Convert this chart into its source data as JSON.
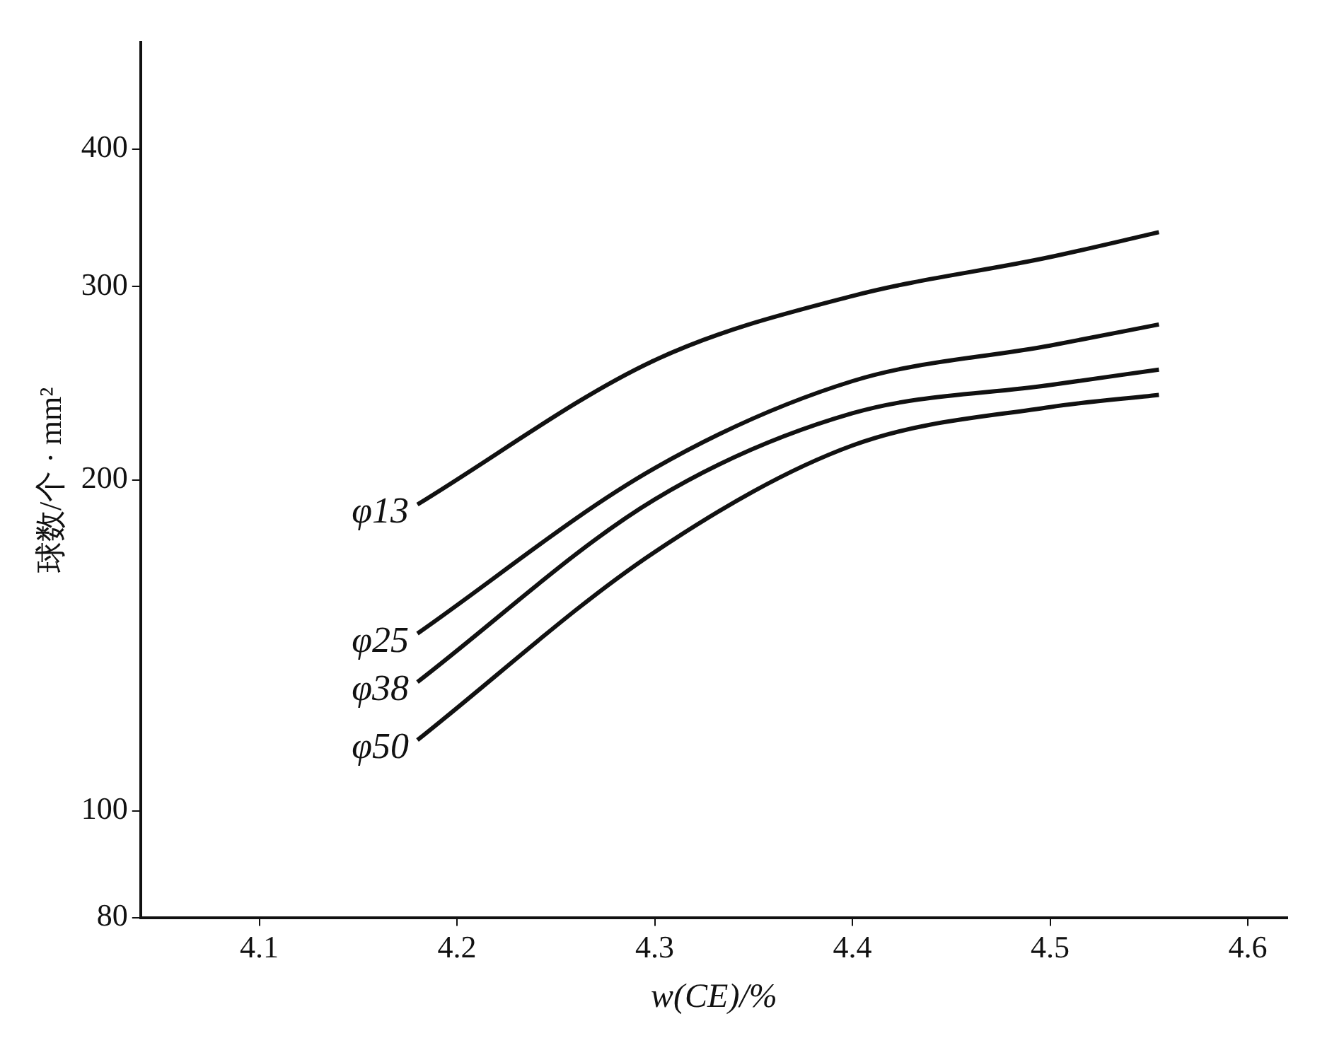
{
  "chart_data": {
    "type": "line",
    "xlabel": "w(CE)/%",
    "ylabel": "球数/个 · mm²",
    "log": "y",
    "grid": false,
    "legend": false,
    "marker": "none",
    "line_style": "solid",
    "x": [
      4.18,
      4.3,
      4.4,
      4.5,
      4.555
    ],
    "xlim": [
      4.04,
      4.62
    ],
    "xticks": [
      4.1,
      4.2,
      4.3,
      4.4,
      4.5,
      4.6
    ],
    "ylim": [
      80,
      500
    ],
    "yticks": [
      80,
      100,
      200,
      300,
      400
    ],
    "series": [
      {
        "name": "φ13",
        "color": "#111111",
        "values": [
          190,
          257,
          294,
          319,
          336
        ]
      },
      {
        "name": "φ25",
        "color": "#111111",
        "values": [
          145,
          205,
          246,
          265,
          277
        ]
      },
      {
        "name": "φ38",
        "color": "#111111",
        "values": [
          131,
          192,
          230,
          244,
          252
        ]
      },
      {
        "name": "φ50",
        "color": "#111111",
        "values": [
          116,
          172,
          215,
          233,
          239
        ]
      }
    ]
  }
}
